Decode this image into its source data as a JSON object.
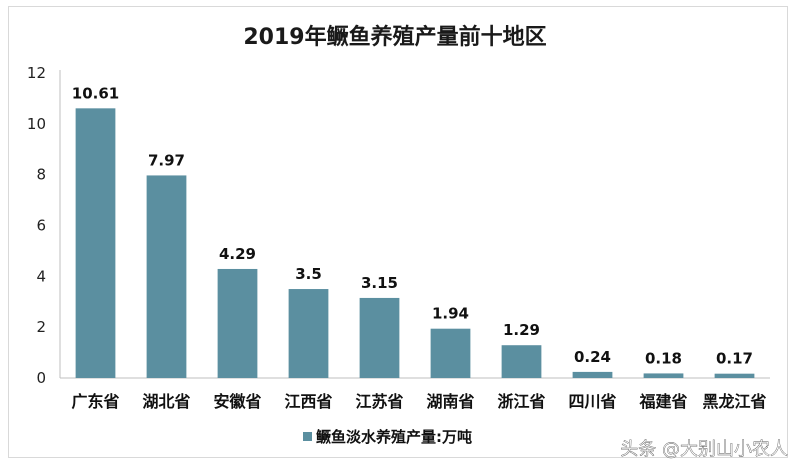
{
  "chart_data": {
    "type": "bar",
    "title": "2019年鳜鱼养殖产量前十地区",
    "categories": [
      "广东省",
      "湖北省",
      "安徽省",
      "江西省",
      "江苏省",
      "湖南省",
      "浙江省",
      "四川省",
      "福建省",
      "黑龙江省"
    ],
    "series": [
      {
        "name": "鳜鱼淡水养殖产量:万吨",
        "values": [
          10.61,
          7.97,
          4.29,
          3.5,
          3.15,
          1.94,
          1.29,
          0.24,
          0.18,
          0.17
        ]
      }
    ],
    "data_labels": [
      "10.61",
      "7.97",
      "4.29",
      "3.5",
      "3.15",
      "1.94",
      "1.29",
      "0.24",
      "0.18",
      "0.17"
    ],
    "ylim": [
      0,
      12
    ],
    "yticks": [
      0,
      2,
      4,
      6,
      8,
      10,
      12
    ],
    "grid": false,
    "legend_position": "bottom",
    "bar_color": "#5b8fa0"
  },
  "watermark": "头条 @大别山小农人"
}
